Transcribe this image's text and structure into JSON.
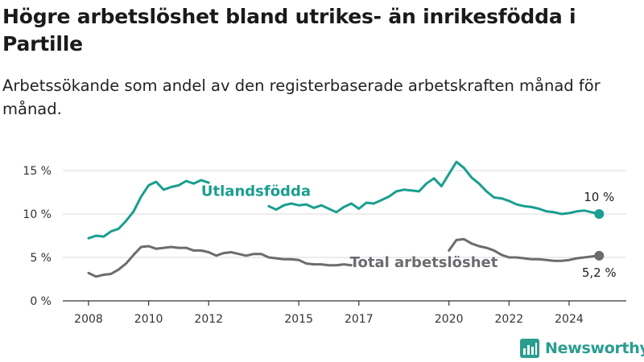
{
  "header": {
    "title": "Högre arbetslöshet bland utrikes- än inrikesfödda i Partille",
    "subtitle": "Arbetssökande som andel av den registerbaserade arbetskraften månad för månad."
  },
  "brand": {
    "name": "Newsworthy"
  },
  "colors": {
    "foreign": "#1a9e8f",
    "total": "#6b6b70",
    "grid": "#d9d9d9",
    "axis": "#333333"
  },
  "chart_data": {
    "type": "line",
    "title": "Högre arbetslöshet bland utrikes- än inrikesfödda i Partille",
    "subtitle": "Arbetssökande som andel av den registerbaserade arbetskraften månad för månad.",
    "xlabel": "",
    "ylabel": "",
    "xlim": [
      2008.0,
      2025.5
    ],
    "ylim": [
      0,
      15
    ],
    "grid": true,
    "legend": "inline labels",
    "x_ticks": [
      2008,
      2010,
      2012,
      2015,
      2017,
      2020,
      2022,
      2024
    ],
    "x_tick_labels": [
      "2008",
      "2010",
      "2012",
      "2015",
      "2017",
      "2020",
      "2022",
      "2024"
    ],
    "y_ticks": [
      0,
      5,
      10,
      15
    ],
    "y_tick_labels": [
      "0 %",
      "5 %",
      "10 %",
      "15 %"
    ],
    "series": [
      {
        "name": "Utlandsfödda",
        "end_label": "10 %",
        "segments": [
          {
            "x": [
              2008.0,
              2008.25,
              2008.5,
              2008.75,
              2009.0,
              2009.25,
              2009.5,
              2009.75,
              2010.0,
              2010.25,
              2010.5,
              2010.75,
              2011.0,
              2011.25,
              2011.5,
              2011.75,
              2012.0
            ],
            "y": [
              7.2,
              7.5,
              7.4,
              8.0,
              8.3,
              9.2,
              10.3,
              12.0,
              13.3,
              13.7,
              12.8,
              13.1,
              13.3,
              13.8,
              13.5,
              13.9,
              13.6
            ]
          },
          {
            "x": [
              2014.0,
              2014.25,
              2014.5,
              2014.75,
              2015.0,
              2015.25,
              2015.5,
              2015.75,
              2016.0,
              2016.25,
              2016.5,
              2016.75,
              2017.0,
              2017.25,
              2017.5,
              2017.75,
              2018.0,
              2018.25,
              2018.5,
              2018.75,
              2019.0,
              2019.25,
              2019.5,
              2019.75,
              2020.0,
              2020.25,
              2020.5,
              2020.75,
              2021.0,
              2021.25,
              2021.5,
              2021.75,
              2022.0,
              2022.25,
              2022.5,
              2022.75,
              2023.0,
              2023.25,
              2023.5,
              2023.75,
              2024.0,
              2024.25,
              2024.5,
              2024.75,
              2025.0
            ],
            "y": [
              10.9,
              10.5,
              11.0,
              11.2,
              11.0,
              11.1,
              10.7,
              11.0,
              10.6,
              10.2,
              10.8,
              11.2,
              10.6,
              11.3,
              11.2,
              11.6,
              12.0,
              12.6,
              12.8,
              12.7,
              12.6,
              13.5,
              14.1,
              13.2,
              14.6,
              16.0,
              15.3,
              14.2,
              13.5,
              12.6,
              11.9,
              11.8,
              11.5,
              11.1,
              10.9,
              10.8,
              10.6,
              10.3,
              10.2,
              10.0,
              10.1,
              10.3,
              10.4,
              10.2,
              10.0
            ]
          }
        ]
      },
      {
        "name": "Total arbetslöshet",
        "end_label": "5,2 %",
        "segments": [
          {
            "x": [
              2008.0,
              2008.25,
              2008.5,
              2008.75,
              2009.0,
              2009.25,
              2009.5,
              2009.75,
              2010.0,
              2010.25,
              2010.5,
              2010.75,
              2011.0,
              2011.25,
              2011.5,
              2011.75,
              2012.0,
              2012.25,
              2012.5,
              2012.75,
              2013.0,
              2013.25,
              2013.5,
              2013.75,
              2014.0,
              2014.25,
              2014.5,
              2014.75,
              2015.0,
              2015.25,
              2015.5,
              2015.75,
              2016.0,
              2016.25,
              2016.5,
              2016.75
            ],
            "y": [
              3.2,
              2.8,
              3.0,
              3.1,
              3.6,
              4.3,
              5.3,
              6.2,
              6.3,
              6.0,
              6.1,
              6.2,
              6.1,
              6.1,
              5.8,
              5.8,
              5.6,
              5.2,
              5.5,
              5.6,
              5.4,
              5.2,
              5.4,
              5.4,
              5.0,
              4.9,
              4.8,
              4.8,
              4.7,
              4.3,
              4.2,
              4.2,
              4.1,
              4.1,
              4.2,
              4.1
            ]
          },
          {
            "x": [
              2020.0,
              2020.25,
              2020.5,
              2020.75,
              2021.0,
              2021.25,
              2021.5,
              2021.75,
              2022.0,
              2022.25,
              2022.5,
              2022.75,
              2023.0,
              2023.25,
              2023.5,
              2023.75,
              2024.0,
              2024.25,
              2024.5,
              2024.75,
              2025.0
            ],
            "y": [
              5.8,
              7.0,
              7.1,
              6.6,
              6.3,
              6.1,
              5.8,
              5.3,
              5.0,
              5.0,
              4.9,
              4.8,
              4.8,
              4.7,
              4.6,
              4.6,
              4.7,
              4.9,
              5.0,
              5.1,
              5.2
            ]
          }
        ]
      }
    ]
  }
}
